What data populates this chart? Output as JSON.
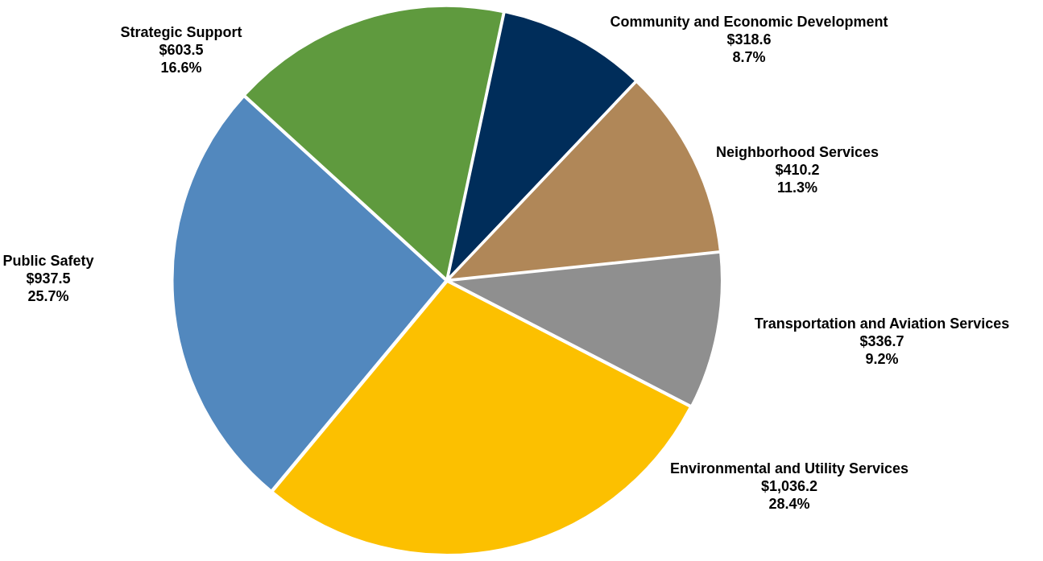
{
  "chart_data": {
    "type": "pie",
    "categories": [
      "Community and Economic Development",
      "Neighborhood Services",
      "Transportation and Aviation Services",
      "Environmental and Utility Services",
      "Public Safety",
      "Strategic Support"
    ],
    "values": [
      318.6,
      410.2,
      336.7,
      1036.2,
      937.5,
      603.5
    ],
    "value_labels": [
      "$318.6\n8.7%",
      "$410.2\n11.3%",
      "$336.7\n9.2%",
      "$1,036.2\n28.4%",
      "$937.5\n25.7%",
      "$603.5\n16.6%"
    ],
    "colors": [
      "#002d5a",
      "#b08758",
      "#8f8f8f",
      "#fcc000",
      "#5288be",
      "#5f9a3e"
    ],
    "legend": false
  }
}
